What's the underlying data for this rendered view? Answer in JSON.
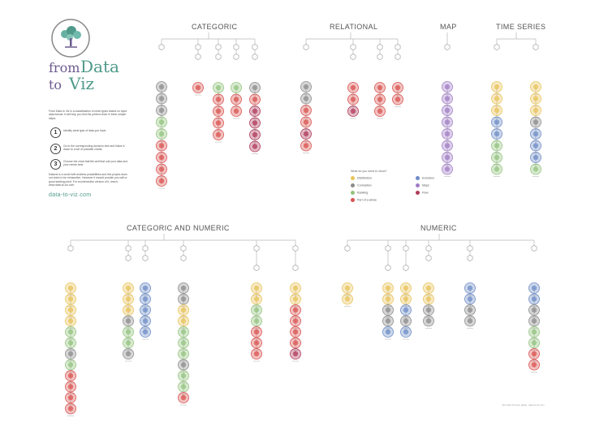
{
  "brand": {
    "from": "from",
    "data": "Data",
    "to": "to",
    "viz": "Viz",
    "website": "data-to-viz.com"
  },
  "sections": {
    "categoric": "CATEGORIC",
    "relational": "RELATIONAL",
    "map": "MAP",
    "time_series": "TIME SERIES",
    "categoric_numeric": "CATEGORIC AND NUMERIC",
    "numeric": "NUMERIC"
  },
  "intro_text": "From Data to Viz is a classification of chart types based on input data format. It will help you find the perfect chart in three simple steps:",
  "steps": [
    {
      "num": "1",
      "text": "Identify what type of data you have."
    },
    {
      "num": "2",
      "text": "Go to the corresponding decision tree and follow it down to a set of possible charts."
    },
    {
      "num": "3",
      "text": "Choose the chart that fits well that suit your data and your needs best."
    }
  ],
  "note_text": "Dataviz is a world with endless possibilities and this project does not claim to be exhaustive. However it should provide you with a good starting point. For an interactive version of it, reach: www.data-to-viz.com",
  "legend": {
    "title": "What do you need to show?",
    "items": [
      {
        "label": "Distribution",
        "color": "#e9c35a"
      },
      {
        "label": "Correlation",
        "color": "#8c8c8c"
      },
      {
        "label": "Ranking",
        "color": "#93c47d"
      },
      {
        "label": "Part of a whole",
        "color": "#d9534f"
      },
      {
        "label": "Evolution",
        "color": "#6d8cc7"
      },
      {
        "label": "Maps",
        "color": "#a07cc5"
      },
      {
        "label": "Flow",
        "color": "#b03a5b"
      }
    ]
  },
  "credit": "Yan Holtz & Conor Healy - data-to-viz.com",
  "colors": {
    "distribution": "#e9c35a",
    "correlation": "#8c8c8c",
    "ranking": "#93c47d",
    "part_whole": "#d9534f",
    "evolution": "#6d8cc7",
    "map": "#a07cc5",
    "flow": "#b03a5b",
    "brand_purple": "#6b5a8e",
    "brand_teal": "#4f9a8a",
    "tree_line": "#b9b9b9"
  },
  "trees": {
    "categoric": [
      [
        "correlation",
        "correlation",
        "correlation",
        "ranking",
        "ranking",
        "part_whole",
        "part_whole",
        "part_whole",
        "part_whole"
      ],
      [
        "part_whole"
      ],
      [
        "ranking",
        "part_whole",
        "part_whole",
        "part_whole",
        "part_whole"
      ],
      [
        "ranking",
        "part_whole",
        "part_whole"
      ],
      [
        "correlation",
        "part_whole",
        "flow",
        "flow",
        "flow",
        "flow"
      ]
    ],
    "relational": [
      [
        "correlation",
        "correlation",
        "part_whole",
        "part_whole",
        "flow",
        "part_whole"
      ],
      [
        "part_whole",
        "part_whole",
        "flow"
      ],
      [
        "part_whole",
        "part_whole",
        "part_whole"
      ],
      [
        "part_whole",
        "part_whole"
      ]
    ],
    "map": [
      [
        "map",
        "map",
        "map",
        "map",
        "map",
        "map",
        "map",
        "map"
      ]
    ],
    "time_series": [
      [
        "distribution",
        "distribution",
        "distribution",
        "evolution",
        "evolution",
        "ranking",
        "ranking",
        "ranking"
      ],
      [
        "distribution",
        "distribution",
        "distribution",
        "correlation",
        "evolution",
        "evolution",
        "evolution",
        "ranking"
      ]
    ],
    "categoric_numeric": [
      [
        "distribution",
        "distribution",
        "distribution",
        "distribution",
        "ranking",
        "ranking",
        "correlation",
        "ranking",
        "part_whole",
        "part_whole",
        "part_whole",
        "part_whole"
      ],
      [
        "distribution",
        "distribution",
        "distribution",
        "correlation",
        "ranking",
        "ranking",
        "correlation"
      ],
      [
        "evolution",
        "evolution",
        "evolution",
        "evolution",
        "evolution"
      ],
      [
        "correlation",
        "correlation",
        "distribution",
        "distribution",
        "ranking",
        "ranking",
        "ranking",
        "correlation",
        "ranking",
        "ranking",
        "part_whole"
      ],
      [
        "distribution",
        "distribution",
        "ranking",
        "ranking",
        "part_whole",
        "part_whole",
        "part_whole"
      ],
      [
        "distribution",
        "distribution",
        "part_whole",
        "part_whole",
        "part_whole",
        "part_whole",
        "flow"
      ]
    ],
    "numeric": [
      [
        "distribution",
        "distribution"
      ],
      [
        "distribution",
        "distribution",
        "correlation",
        "correlation",
        "evolution"
      ],
      [
        "distribution",
        "distribution",
        "evolution",
        "correlation",
        "evolution"
      ],
      [
        "distribution",
        "distribution",
        "correlation",
        "correlation"
      ],
      [
        "evolution",
        "evolution",
        "correlation",
        "correlation"
      ],
      [
        "evolution",
        "evolution",
        "correlation",
        "correlation",
        "ranking",
        "ranking",
        "part_whole",
        "part_whole"
      ]
    ]
  }
}
